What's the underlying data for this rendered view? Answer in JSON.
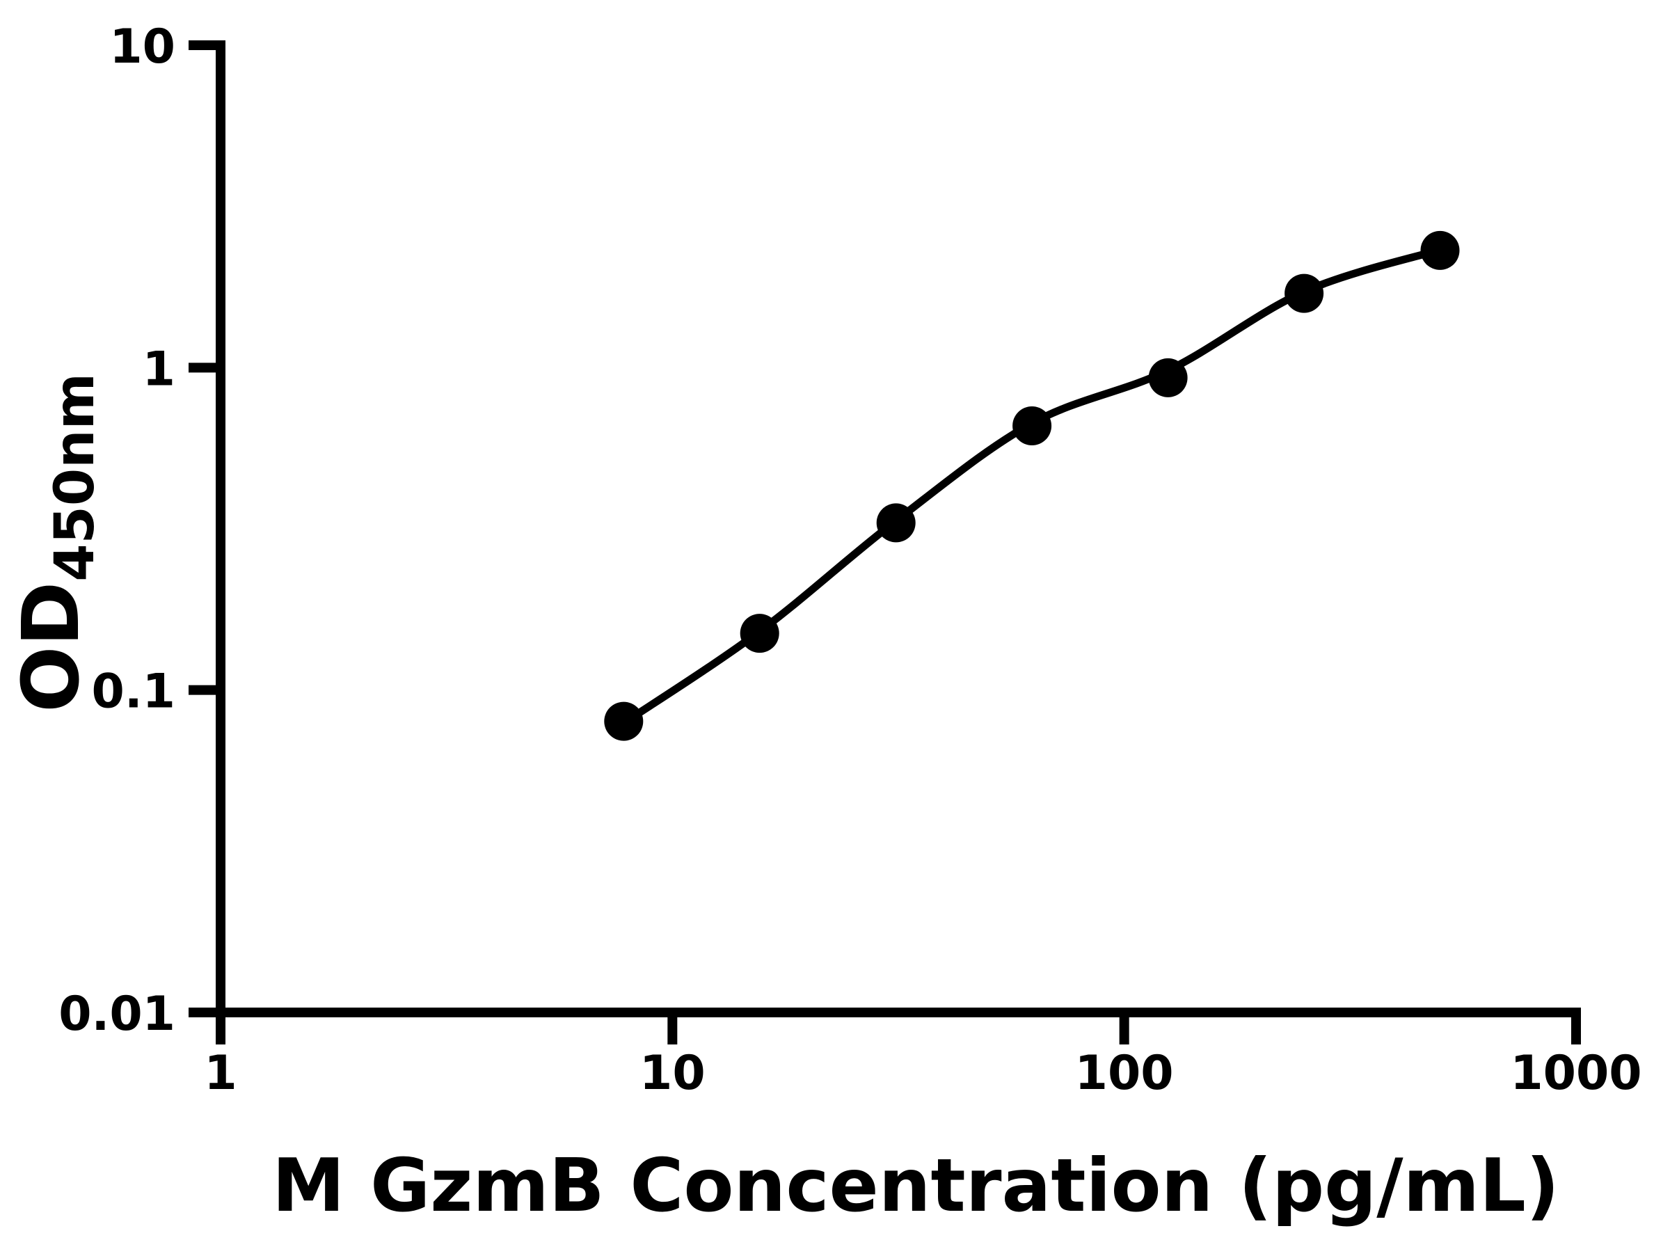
{
  "figure": {
    "background_color": "#ffffff",
    "foreground_color": "#000000"
  },
  "chart_data": {
    "type": "scatter",
    "title": "",
    "xlabel": "M GzmB Concentration (pg/mL)",
    "ylabel": "OD",
    "ylabel_subscript": "450nm",
    "x_scale": "log",
    "y_scale": "log",
    "xlim": [
      1,
      1000
    ],
    "ylim": [
      0.01,
      10
    ],
    "grid": false,
    "legend": null,
    "x_axis": {
      "ticks": [
        {
          "value": 1,
          "label": "1"
        },
        {
          "value": 10,
          "label": "10"
        },
        {
          "value": 100,
          "label": "100"
        },
        {
          "value": 1000,
          "label": "1000"
        }
      ]
    },
    "y_axis": {
      "ticks": [
        {
          "value": 10,
          "label": "10"
        },
        {
          "value": 1,
          "label": "1"
        },
        {
          "value": 0.1,
          "label": "0.1"
        },
        {
          "value": 0.01,
          "label": "0.01"
        }
      ]
    },
    "series": [
      {
        "name": "standard-points",
        "marker": "filled-circle",
        "color": "#000000",
        "x": [
          7.8,
          15.6,
          31.25,
          62.5,
          125,
          250,
          500
        ],
        "y": [
          0.08,
          0.15,
          0.33,
          0.66,
          0.93,
          1.7,
          2.31
        ]
      }
    ],
    "fit_curve": {
      "name": "4pl-fit-line",
      "color": "#000000",
      "x": [
        7.8,
        15.6,
        31.25,
        62.5,
        125,
        250,
        500
      ],
      "y": [
        0.079,
        0.152,
        0.335,
        0.672,
        0.98,
        1.72,
        2.32
      ]
    }
  }
}
